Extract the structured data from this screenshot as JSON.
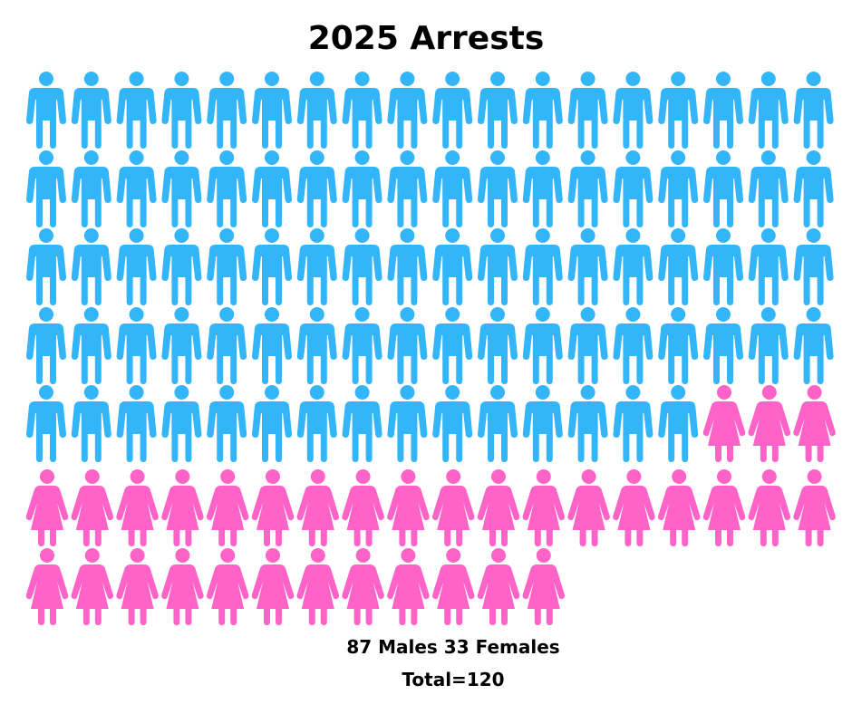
{
  "chart_data": {
    "type": "pictograph",
    "title": "2025 Arrests",
    "categories": [
      "Males",
      "Females"
    ],
    "values": [
      87,
      33
    ],
    "total": 120,
    "colors": {
      "male": "#33b5fa",
      "female": "#ff63c8"
    },
    "icons": {
      "male": "male-person-icon",
      "female": "female-person-icon"
    },
    "summary_text": "87 Males 33 Females",
    "total_text": "Total=120"
  }
}
